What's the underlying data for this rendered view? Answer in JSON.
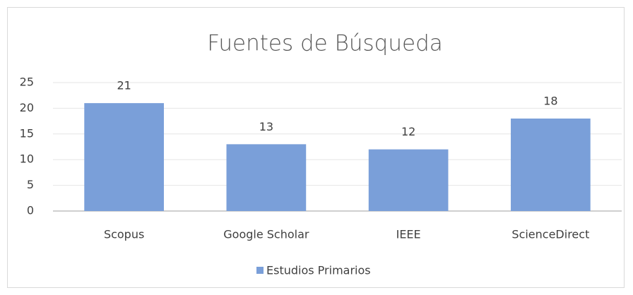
{
  "chart_data": {
    "type": "bar",
    "title": "Fuentes de Búsqueda",
    "categories": [
      "Scopus",
      "Google Scholar",
      "IEEE",
      "ScienceDirect"
    ],
    "series": [
      {
        "name": "Estudios Primarios",
        "color": "#7a9fd9",
        "values": [
          21,
          13,
          12,
          18
        ]
      }
    ],
    "ylim": [
      0,
      25
    ],
    "yticks": [
      0,
      5,
      10,
      15,
      20,
      25
    ],
    "grid": true,
    "legend": "bottom"
  }
}
